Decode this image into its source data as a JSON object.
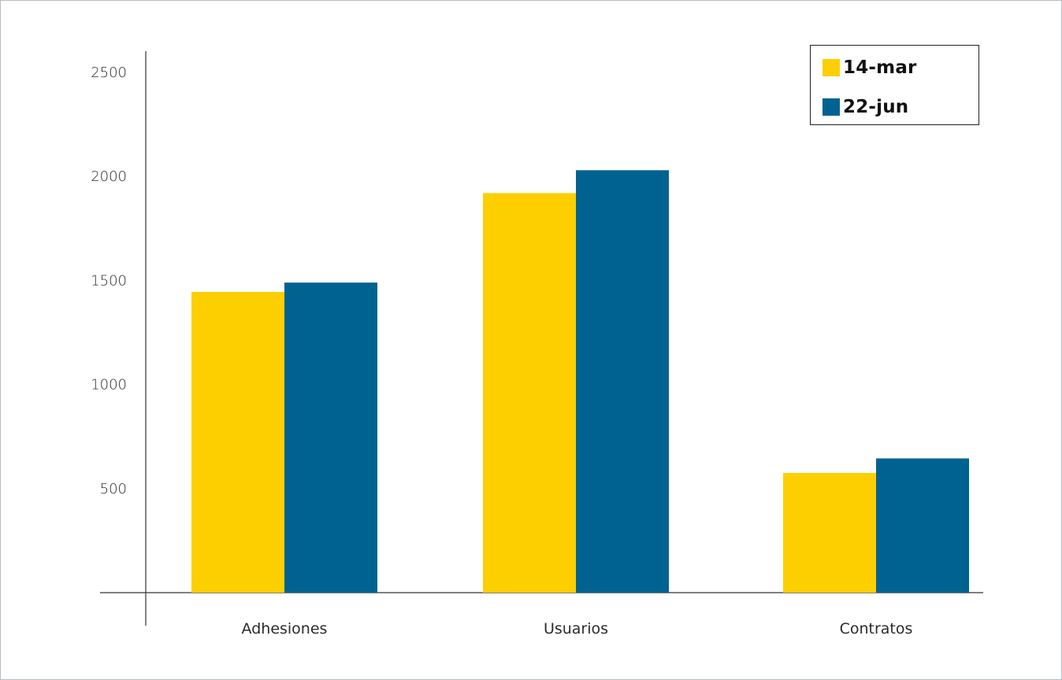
{
  "chart_data": {
    "type": "bar",
    "title": "",
    "xlabel": "",
    "ylabel": "",
    "categories": [
      "Adhesiones",
      "Usuarios",
      "Contratos"
    ],
    "series": [
      {
        "name": "14-mar",
        "color": "#FDCF00",
        "values": [
          1445,
          1920,
          575
        ]
      },
      {
        "name": "22-jun",
        "color": "#006291",
        "values": [
          1490,
          2030,
          645
        ]
      }
    ],
    "ylim": [
      0,
      2700
    ],
    "yticks": [
      500,
      1000,
      1500,
      2000,
      2500
    ],
    "grid": false,
    "legend_position": "top-right"
  }
}
